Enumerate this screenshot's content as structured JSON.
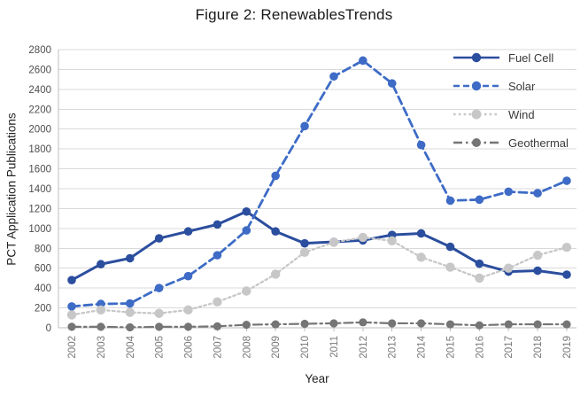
{
  "chart_data": {
    "type": "line",
    "title": "Figure 2: RenewablesTrends",
    "xlabel": "Year",
    "ylabel": "PCT Application Publications",
    "ylim": [
      0,
      2800
    ],
    "ytick_step": 200,
    "yticks": [
      0,
      200,
      400,
      600,
      800,
      1000,
      1200,
      1400,
      1600,
      1800,
      2000,
      2200,
      2400,
      2600,
      2800
    ],
    "grid": "horizontal",
    "legend_position": "top-right-inside",
    "categories": [
      "2002",
      "2003",
      "2004",
      "2005",
      "2006",
      "2007",
      "2008",
      "2009",
      "2010",
      "2011",
      "2012",
      "2013",
      "2014",
      "2015",
      "2016",
      "2017",
      "2018",
      "2019"
    ],
    "series": [
      {
        "name": "Fuel Cell",
        "color": "#2b4e9e",
        "style": "solid",
        "marker": "circle",
        "values": [
          480,
          640,
          700,
          900,
          970,
          1040,
          1170,
          970,
          850,
          865,
          880,
          935,
          950,
          815,
          645,
          565,
          575,
          535
        ]
      },
      {
        "name": "Solar",
        "color": "#3d6bc6",
        "style": "dashed",
        "marker": "circle",
        "values": [
          215,
          240,
          245,
          400,
          520,
          730,
          980,
          1530,
          2030,
          2530,
          2690,
          2460,
          1840,
          1280,
          1290,
          1370,
          1355,
          1480
        ]
      },
      {
        "name": "Wind",
        "color": "#c7c7c7",
        "style": "dotted",
        "marker": "circle",
        "values": [
          130,
          180,
          155,
          145,
          180,
          260,
          370,
          540,
          760,
          860,
          910,
          875,
          710,
          610,
          500,
          600,
          730,
          810
        ]
      },
      {
        "name": "Geothermal",
        "color": "#757575",
        "style": "dash-dot",
        "marker": "circle",
        "values": [
          10,
          10,
          5,
          10,
          10,
          15,
          30,
          35,
          40,
          45,
          55,
          45,
          45,
          35,
          25,
          35,
          35,
          35
        ]
      }
    ],
    "colors": {
      "grid": "#d9d9d9",
      "axis": "#bdbdbd",
      "ytick_text": "#4d4d4d",
      "xtick_text": "#7a7a7a",
      "title_text": "#1a1a1a"
    }
  }
}
